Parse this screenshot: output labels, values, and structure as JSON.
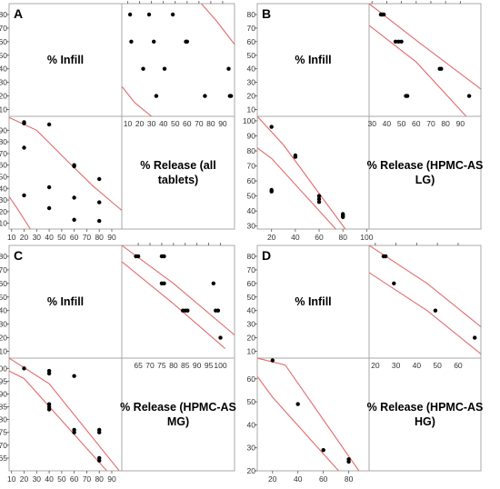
{
  "chart_data": [
    {
      "type": "scatter",
      "panel": "A",
      "variables": [
        "% Infill",
        "% Release (all tablets)"
      ],
      "x_axis_release": {
        "range": [
          5,
          100
        ],
        "ticks": [
          10,
          20,
          30,
          40,
          50,
          60,
          70,
          80,
          90
        ]
      },
      "y_axis_infill": {
        "range": [
          5,
          88
        ],
        "ticks": [
          10,
          20,
          30,
          40,
          50,
          60,
          70,
          80
        ]
      },
      "x_axis_infill": {
        "range": [
          8,
          98
        ],
        "ticks": [
          10,
          20,
          30,
          40,
          50,
          60,
          70,
          80,
          90
        ]
      },
      "y_axis_release": {
        "range": [
          5,
          102
        ],
        "ticks": [
          10,
          20,
          30,
          40,
          50,
          60,
          70,
          80,
          90
        ]
      },
      "points": [
        {
          "infill": 20,
          "release": 97
        },
        {
          "infill": 20,
          "release": 96
        },
        {
          "infill": 20,
          "release": 75
        },
        {
          "infill": 20,
          "release": 34
        },
        {
          "infill": 40,
          "release": 95
        },
        {
          "infill": 40,
          "release": 41
        },
        {
          "infill": 40,
          "release": 23
        },
        {
          "infill": 60,
          "release": 60
        },
        {
          "infill": 60,
          "release": 59
        },
        {
          "infill": 60,
          "release": 32
        },
        {
          "infill": 60,
          "release": 13
        },
        {
          "infill": 80,
          "release": 48
        },
        {
          "infill": 80,
          "release": 28
        },
        {
          "infill": 80,
          "release": 12
        }
      ],
      "ellipse_band": {
        "lower_upper": [
          [
            [
              5,
              27
            ],
            [
              16,
              15
            ],
            [
              30,
              5
            ]
          ],
          [
            [
              72,
              88
            ],
            [
              85,
              75
            ],
            [
              100,
              58
            ]
          ]
        ],
        "upper_lower": [
          [
            [
              8,
              101
            ],
            [
              30,
              90
            ],
            [
              55,
              63
            ],
            [
              75,
              42
            ],
            [
              98,
              21
            ]
          ],
          [
            [
              8,
              33
            ],
            [
              15,
              22
            ],
            [
              25,
              5
            ]
          ]
        ]
      }
    },
    {
      "type": "scatter",
      "panel": "B",
      "variables": [
        "% Infill",
        "% Release (HPMC-AS LG)"
      ],
      "x_axis_release": {
        "range": [
          28,
          104
        ],
        "ticks": [
          30,
          40,
          50,
          60,
          70,
          80,
          90
        ]
      },
      "y_axis_infill": {
        "range": [
          5,
          88
        ],
        "ticks": [
          10,
          20,
          30,
          40,
          50,
          60,
          70,
          80
        ]
      },
      "x_axis_infill": {
        "range": [
          8,
          102
        ],
        "ticks": [
          20,
          40,
          60,
          80,
          100
        ]
      },
      "y_axis_release": {
        "range": [
          28,
          103
        ],
        "ticks": [
          30,
          40,
          50,
          60,
          70,
          80,
          90,
          100
        ]
      },
      "points": [
        {
          "infill": 20,
          "release": 96
        },
        {
          "infill": 20,
          "release": 54
        },
        {
          "infill": 20,
          "release": 53
        },
        {
          "infill": 40,
          "release": 77
        },
        {
          "infill": 40,
          "release": 76
        },
        {
          "infill": 60,
          "release": 50
        },
        {
          "infill": 60,
          "release": 48
        },
        {
          "infill": 60,
          "release": 46
        },
        {
          "infill": 80,
          "release": 38
        },
        {
          "infill": 80,
          "release": 37
        },
        {
          "infill": 80,
          "release": 36
        }
      ],
      "ellipse_band": {
        "lower_upper": [
          [
            [
              28,
              88
            ],
            [
              60,
              61
            ],
            [
              104,
              25
            ]
          ],
          [
            [
              28,
              72
            ],
            [
              60,
              45
            ],
            [
              94,
              5
            ]
          ]
        ],
        "upper_lower": [
          [
            [
              8,
              103
            ],
            [
              30,
              84
            ],
            [
              82,
              28
            ]
          ],
          [
            [
              8,
              82
            ],
            [
              20,
              75
            ],
            [
              74,
              28
            ]
          ]
        ]
      }
    },
    {
      "type": "scatter",
      "panel": "C",
      "variables": [
        "% Infill",
        "% Release (HPMC-AS MG)"
      ],
      "x_axis_release": {
        "range": [
          58,
          106
        ],
        "ticks": [
          65,
          70,
          75,
          80,
          85,
          90,
          95,
          100
        ]
      },
      "y_axis_infill": {
        "range": [
          5,
          88
        ],
        "ticks": [
          10,
          20,
          30,
          40,
          50,
          60,
          70,
          80
        ]
      },
      "x_axis_infill": {
        "range": [
          8,
          98
        ],
        "ticks": [
          10,
          20,
          30,
          40,
          50,
          60,
          70,
          80,
          90
        ]
      },
      "y_axis_release": {
        "range": [
          60,
          104
        ],
        "ticks": [
          65,
          70,
          75,
          80,
          85,
          90,
          95,
          100
        ]
      },
      "points": [
        {
          "infill": 20,
          "release": 100
        },
        {
          "infill": 40,
          "release": 99
        },
        {
          "infill": 40,
          "release": 98
        },
        {
          "infill": 40,
          "release": 86
        },
        {
          "infill": 40,
          "release": 85
        },
        {
          "infill": 40,
          "release": 84
        },
        {
          "infill": 60,
          "release": 97
        },
        {
          "infill": 60,
          "release": 76
        },
        {
          "infill": 60,
          "release": 75
        },
        {
          "infill": 80,
          "release": 76
        },
        {
          "infill": 80,
          "release": 75
        },
        {
          "infill": 80,
          "release": 65
        },
        {
          "infill": 80,
          "release": 64
        }
      ],
      "ellipse_band": {
        "lower_upper": [
          [
            [
              58,
              88
            ],
            [
              80,
              60
            ],
            [
              106,
              22
            ]
          ],
          [
            [
              58,
              76
            ],
            [
              80,
              45
            ],
            [
              102,
              12
            ]
          ]
        ],
        "upper_lower": [
          [
            [
              8,
              104
            ],
            [
              40,
              94
            ],
            [
              96,
              60
            ]
          ],
          [
            [
              8,
              99
            ],
            [
              20,
              96
            ],
            [
              86,
              60
            ]
          ]
        ]
      }
    },
    {
      "type": "scatter",
      "panel": "D",
      "variables": [
        "% Infill",
        "% Release (HPMC-AS HG)"
      ],
      "x_axis_release": {
        "range": [
          17,
          71
        ],
        "ticks": [
          20,
          30,
          40,
          50,
          60
        ]
      },
      "y_axis_infill": {
        "range": [
          5,
          88
        ],
        "ticks": [
          10,
          20,
          30,
          40,
          50,
          60,
          70,
          80
        ]
      },
      "x_axis_infill": {
        "range": [
          8,
          96
        ],
        "ticks": [
          20,
          40,
          60,
          80
        ]
      },
      "y_axis_release": {
        "range": [
          20,
          69
        ],
        "ticks": [
          20,
          30,
          40,
          50,
          60
        ]
      },
      "points": [
        {
          "infill": 20,
          "release": 68
        },
        {
          "infill": 40,
          "release": 49
        },
        {
          "infill": 60,
          "release": 29
        },
        {
          "infill": 80,
          "release": 25
        },
        {
          "infill": 80,
          "release": 24
        }
      ],
      "ellipse_band": {
        "lower_upper": [
          [
            [
              17,
              88
            ],
            [
              45,
              60
            ],
            [
              71,
              28
            ]
          ],
          [
            [
              17,
              68
            ],
            [
              45,
              40
            ],
            [
              71,
              8
            ]
          ]
        ],
        "upper_lower": [
          [
            [
              8,
              69
            ],
            [
              30,
              66
            ],
            [
              88,
              20
            ]
          ],
          [
            [
              8,
              61
            ],
            [
              20,
              52
            ],
            [
              72,
              20
            ]
          ]
        ]
      }
    }
  ]
}
